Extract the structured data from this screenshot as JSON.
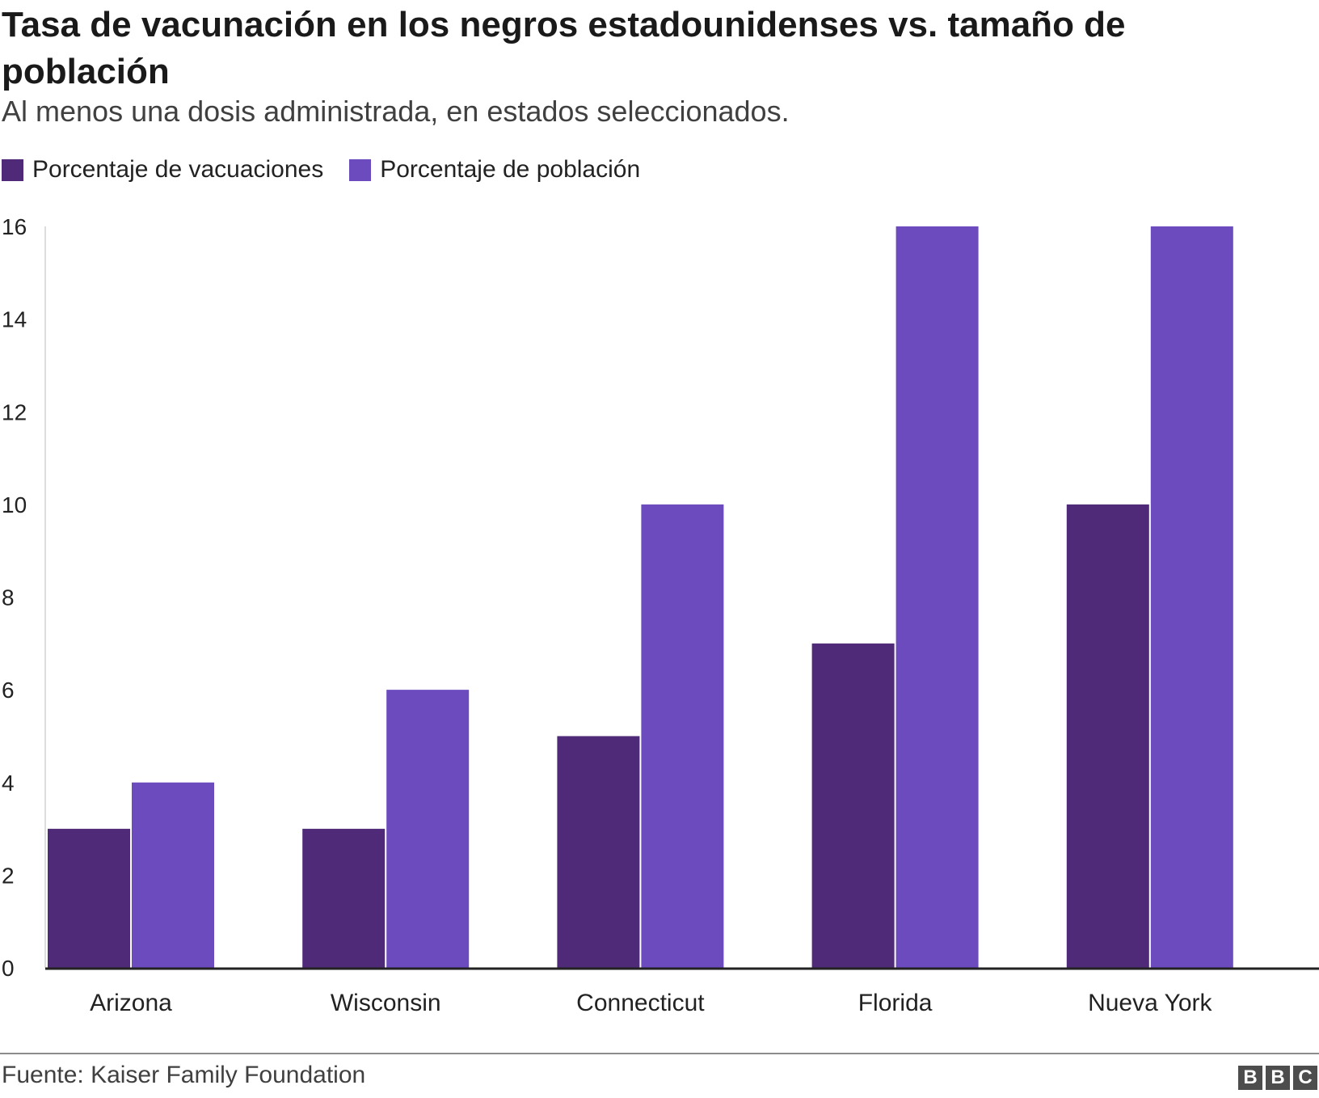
{
  "chart_data": {
    "type": "bar",
    "title": "Tasa de vacunación en los negros estadounidenses vs. tamaño de población",
    "subtitle": "Al menos una dosis administrada, en estados seleccionados.",
    "categories": [
      "Arizona",
      "Wisconsin",
      "Connecticut",
      "Florida",
      "Nueva York"
    ],
    "series": [
      {
        "name": "Porcentaje de vacuaciones",
        "color": "#4e2a78",
        "values": [
          3,
          3,
          5,
          7,
          10
        ]
      },
      {
        "name": "Porcentaje de población",
        "color": "#6c4bbf",
        "values": [
          4,
          6,
          10,
          16,
          16
        ]
      }
    ],
    "ylim": [
      0,
      16
    ],
    "yticks": [
      0,
      2,
      4,
      6,
      8,
      10,
      12,
      14,
      16
    ],
    "xlabel": "",
    "ylabel": "",
    "legend_position": "top-left",
    "grid": false
  },
  "footer": {
    "source": "Fuente: Kaiser Family Foundation",
    "logo": [
      "B",
      "B",
      "C"
    ]
  }
}
